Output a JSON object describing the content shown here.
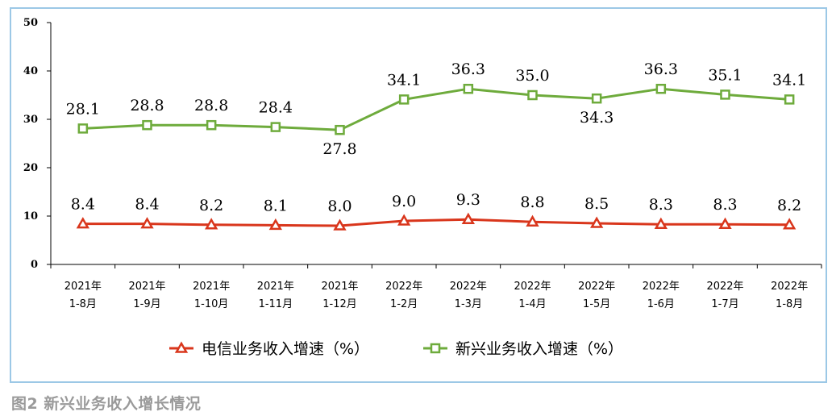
{
  "caption": "图2 新兴业务收入增长情况",
  "chart_data": {
    "type": "line",
    "title": "",
    "xlabel": "",
    "ylabel": "",
    "ylim": [
      0,
      50
    ],
    "yticks": [
      "0",
      "10",
      "20",
      "30",
      "40",
      "50"
    ],
    "categories": [
      [
        "2021年",
        "1-8月"
      ],
      [
        "2021年",
        "1-9月"
      ],
      [
        "2021年",
        "1-10月"
      ],
      [
        "2021年",
        "1-11月"
      ],
      [
        "2021年",
        "1-12月"
      ],
      [
        "2022年",
        "1-2月"
      ],
      [
        "2022年",
        "1-3月"
      ],
      [
        "2022年",
        "1-4月"
      ],
      [
        "2022年",
        "1-5月"
      ],
      [
        "2022年",
        "1-6月"
      ],
      [
        "2022年",
        "1-7月"
      ],
      [
        "2022年",
        "1-8月"
      ]
    ],
    "series": [
      {
        "name": "电信业务收入增速（%）",
        "color": "#d9361c",
        "marker": "triangle",
        "values": [
          8.4,
          8.4,
          8.2,
          8.1,
          8.0,
          9.0,
          9.3,
          8.8,
          8.5,
          8.3,
          8.3,
          8.2
        ],
        "labels": [
          "8.4",
          "8.4",
          "8.2",
          "8.1",
          "8.0",
          "9.0",
          "9.3",
          "8.8",
          "8.5",
          "8.3",
          "8.3",
          "8.2"
        ]
      },
      {
        "name": "新兴业务收入增速（%）",
        "color": "#6eab3c",
        "marker": "square",
        "values": [
          28.1,
          28.8,
          28.8,
          28.4,
          27.8,
          34.1,
          36.3,
          35.0,
          34.3,
          36.3,
          35.1,
          34.1
        ],
        "labels": [
          "28.1",
          "28.8",
          "28.8",
          "28.4",
          "27.8",
          "34.1",
          "36.3",
          "35.0",
          "34.3",
          "36.3",
          "35.1",
          "34.1"
        ]
      }
    ],
    "legend": "bottom-center"
  }
}
